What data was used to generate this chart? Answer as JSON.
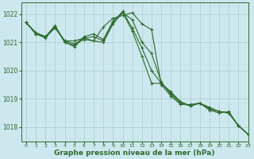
{
  "background_color": "#cce8ee",
  "grid_color": "#aacccc",
  "line_color": "#2d6a2d",
  "marker_color": "#2d6a2d",
  "xlabel": "Graphe pression niveau de la mer (hPa)",
  "xlabel_fontsize": 6.5,
  "ylim": [
    1017.5,
    1022.4
  ],
  "xlim": [
    -0.5,
    23
  ],
  "yticks": [
    1018,
    1019,
    1020,
    1021,
    1022
  ],
  "xticks": [
    0,
    1,
    2,
    3,
    4,
    5,
    6,
    7,
    8,
    9,
    10,
    11,
    12,
    13,
    14,
    15,
    16,
    17,
    18,
    19,
    20,
    21,
    22,
    23
  ],
  "series": [
    [
      1021.7,
      1021.3,
      1021.15,
      1021.55,
      1021.05,
      1020.95,
      1021.1,
      1021.05,
      1021.0,
      1021.65,
      1022.05,
      1021.4,
      1020.5,
      1019.55,
      1019.55,
      1019.25,
      1018.9,
      1018.75,
      1018.85,
      1018.65,
      1018.55,
      1018.5,
      1018.05,
      1017.75
    ],
    [
      1021.7,
      1021.3,
      1021.2,
      1021.55,
      1021.0,
      1020.85,
      1021.15,
      1021.2,
      1021.05,
      1021.7,
      1022.1,
      1021.5,
      1020.8,
      1020.0,
      1019.55,
      1019.2,
      1018.9,
      1018.75,
      1018.85,
      1018.65,
      1018.55,
      1018.5,
      1018.05,
      1017.75
    ],
    [
      1021.7,
      1021.3,
      1021.2,
      1021.6,
      1021.0,
      1020.9,
      1021.2,
      1021.3,
      1021.1,
      1021.75,
      1022.05,
      1021.8,
      1021.0,
      1020.6,
      1019.6,
      1019.15,
      1018.85,
      1018.75,
      1018.85,
      1018.7,
      1018.55,
      1018.5,
      1018.05,
      1017.75
    ],
    [
      1021.7,
      1021.35,
      1021.2,
      1021.5,
      1021.05,
      1021.05,
      1021.15,
      1021.05,
      1021.55,
      1021.85,
      1021.95,
      1022.05,
      1021.65,
      1021.45,
      1019.5,
      1019.1,
      1018.8,
      1018.8,
      1018.85,
      1018.6,
      1018.5,
      1018.55,
      1018.05,
      1017.75
    ]
  ]
}
